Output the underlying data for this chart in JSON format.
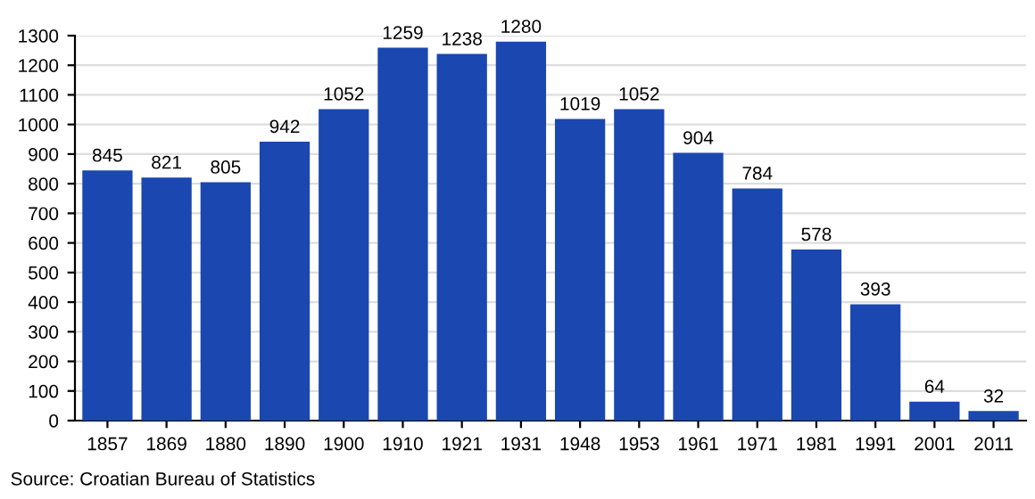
{
  "chart_data": {
    "type": "bar",
    "categories": [
      "1857",
      "1869",
      "1880",
      "1890",
      "1900",
      "1910",
      "1921",
      "1931",
      "1948",
      "1953",
      "1961",
      "1971",
      "1981",
      "1991",
      "2001",
      "2011"
    ],
    "values": [
      845,
      821,
      805,
      942,
      1052,
      1259,
      1238,
      1280,
      1019,
      1052,
      904,
      784,
      578,
      393,
      64,
      32
    ],
    "color": "#1a47b0",
    "ylim": [
      0,
      1300
    ],
    "yticks": [
      0,
      100,
      200,
      300,
      400,
      500,
      600,
      700,
      800,
      900,
      1000,
      1100,
      1200,
      1300
    ],
    "grid": "y",
    "data_labels": true,
    "annotations": [
      "Source: Croatian Bureau of Statistics"
    ]
  }
}
